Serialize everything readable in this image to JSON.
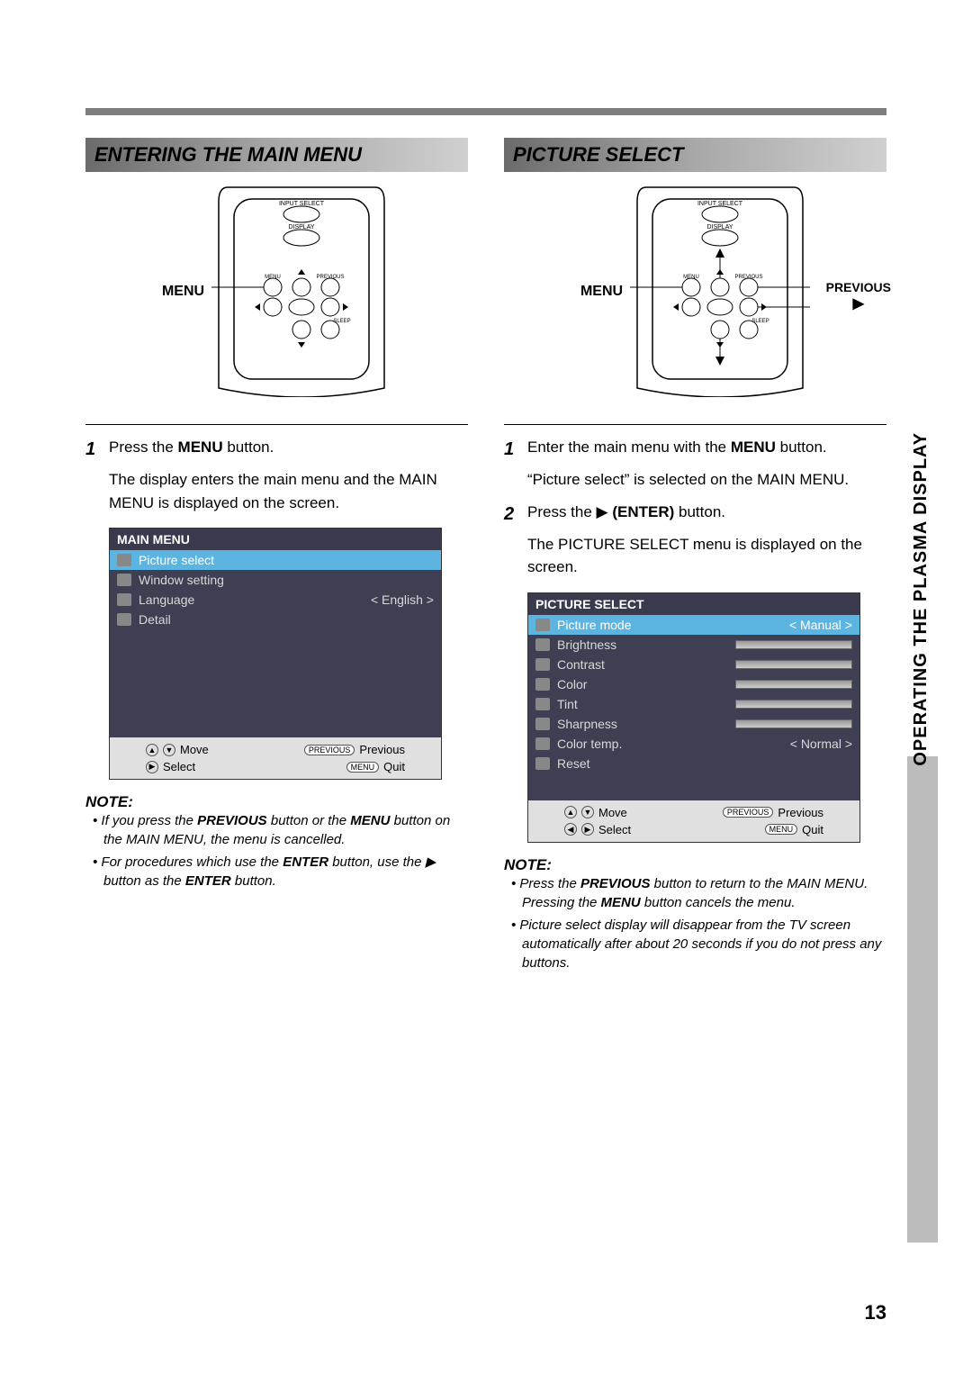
{
  "side_label": "OPERATING THE PLASMA DISPLAY",
  "page_number": "13",
  "left": {
    "heading": "ENTERING THE MAIN MENU",
    "remote_label": "MENU",
    "step1_num": "1",
    "step1_a": "Press the ",
    "step1_b": "MENU",
    "step1_c": " button.",
    "step1_sub": "The display enters the main menu and the MAIN MENU is displayed on the screen.",
    "menu_title": "MAIN MENU",
    "items": [
      {
        "label": "Picture select",
        "hl": true
      },
      {
        "label": "Window setting"
      },
      {
        "label": "Language",
        "val": "< English >"
      },
      {
        "label": "Detail"
      }
    ],
    "footer_move": "Move",
    "footer_previous": "Previous",
    "footer_select": "Select",
    "footer_quit": "Quit",
    "note_hdr": "NOTE:",
    "note1_a": "If you press the ",
    "note1_b": "PREVIOUS",
    "note1_c": " button or the ",
    "note1_d": "MENU",
    "note1_e": " button on the MAIN MENU, the menu is cancelled.",
    "note2_a": "For procedures which use the ",
    "note2_b": "ENTER",
    "note2_c": " button, use the ▶ button as the ",
    "note2_d": "ENTER",
    "note2_e": " button."
  },
  "right": {
    "heading": "PICTURE SELECT",
    "remote_label": "MENU",
    "remote_prev": "PREVIOUS",
    "step1_num": "1",
    "step1_a": "Enter the main menu with the ",
    "step1_b": "MENU",
    "step1_c": " button.",
    "step1_sub": "“Picture select” is selected on the MAIN MENU.",
    "step2_num": "2",
    "step2_a": "Press the ▶ ",
    "step2_b": "(ENTER)",
    "step2_c": " button.",
    "step2_sub": "The PICTURE SELECT menu is displayed on the screen.",
    "menu_title": "PICTURE SELECT",
    "items": [
      {
        "label": "Picture mode",
        "val": "< Manual >",
        "hl": true
      },
      {
        "label": "Brightness",
        "slider": true
      },
      {
        "label": "Contrast",
        "slider": true
      },
      {
        "label": "Color",
        "slider": true
      },
      {
        "label": "Tint",
        "slider": true
      },
      {
        "label": "Sharpness",
        "slider": true
      },
      {
        "label": "Color temp.",
        "val": "< Normal >"
      },
      {
        "label": "Reset"
      }
    ],
    "footer_move": "Move",
    "footer_previous": "Previous",
    "footer_select": "Select",
    "footer_quit": "Quit",
    "note_hdr": "NOTE:",
    "note1_a": "Press the ",
    "note1_b": "PREVIOUS",
    "note1_c": " button to return to the MAIN MENU. Pressing the ",
    "note1_d": "MENU",
    "note1_e": " button cancels the menu.",
    "note2": "Picture select display will disappear from the TV screen automatically after about 20 seconds if you do not press any buttons."
  },
  "remote": {
    "input_select": "INPUT SELECT",
    "display": "DISPLAY",
    "menu": "MENU",
    "previous": "PREVIOUS",
    "sleep": "SLEEP"
  },
  "footer_btn_prev": "PREVIOUS",
  "footer_btn_menu": "MENU"
}
